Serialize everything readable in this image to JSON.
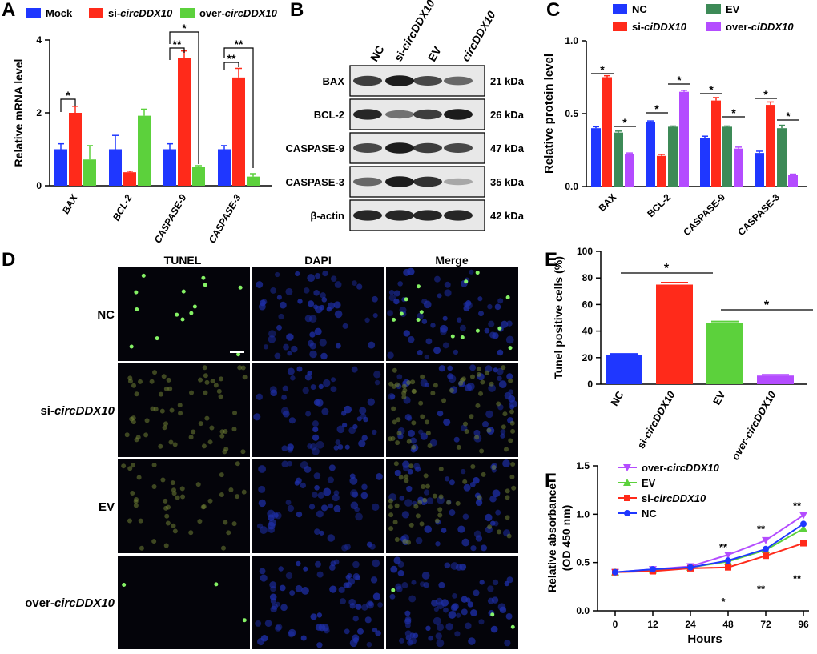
{
  "panels": {
    "A": {
      "letter": "A",
      "legend": [
        {
          "name_plain": "Mock",
          "name_prefix": "",
          "name_italic": "",
          "color": "#1f37ff"
        },
        {
          "name_plain": "",
          "name_prefix": "si-",
          "name_italic": "circDDX10",
          "color": "#ff2a1a"
        },
        {
          "name_plain": "",
          "name_prefix": "over-",
          "name_italic": "circDDX10",
          "color": "#5cd13c"
        }
      ],
      "ylabel": "Relative mRNA level",
      "yticks": [
        "0",
        "2",
        "4"
      ],
      "categories": [
        "BAX",
        "BCL-2",
        "CASPASE-9",
        "CASPASE-3"
      ],
      "sig": [
        "*",
        "**",
        "*",
        "**",
        "**"
      ]
    },
    "B": {
      "letter": "B",
      "lanes": [
        {
          "prefix": "",
          "italic": "",
          "plain": "NC"
        },
        {
          "prefix": "si-",
          "italic": "circDDX10",
          "plain": ""
        },
        {
          "prefix": "",
          "italic": "",
          "plain": "EV"
        },
        {
          "prefix": "",
          "italic": "circDDX10",
          "plain": ""
        }
      ],
      "rows": [
        {
          "protein": "BAX",
          "size": "21 kDa"
        },
        {
          "protein": "BCL-2",
          "size": "26 kDa"
        },
        {
          "protein": "CASPASE-9",
          "size": "47 kDa"
        },
        {
          "protein": "CASPASE-3",
          "size": "35 kDa"
        },
        {
          "protein": "β-actin",
          "size": "42 kDa"
        }
      ]
    },
    "C": {
      "letter": "C",
      "legend": [
        {
          "prefix": "NC",
          "italic": "",
          "color": "#1f37ff"
        },
        {
          "prefix": "EV",
          "italic": "",
          "color": "#3d8a57"
        },
        {
          "prefix": "si-",
          "italic": "ciDDX10",
          "color": "#ff2a1a"
        },
        {
          "prefix": "over-",
          "italic": "ciDDX10",
          "color": "#b44cff"
        }
      ],
      "ylabel": "Relative protein level",
      "yticks": [
        "0.0",
        "0.5",
        "1.0"
      ],
      "categories": [
        "BAX",
        "BCL-2",
        "CASPASE-9",
        "CASPASE-3"
      ],
      "sig": "*"
    },
    "D": {
      "letter": "D",
      "columns": [
        "TUNEL",
        "DAPI",
        "Merge"
      ],
      "rows": [
        {
          "prefix": "NC",
          "italic": ""
        },
        {
          "prefix": "si-",
          "italic": "circDDX10"
        },
        {
          "prefix": "EV",
          "italic": ""
        },
        {
          "prefix": "over-",
          "italic": "circDDX10"
        }
      ]
    },
    "E": {
      "letter": "E",
      "ylabel": "Tunel positive cells (%)",
      "yticks": [
        "0",
        "20",
        "40",
        "60",
        "80",
        "100"
      ],
      "categories": [
        {
          "prefix": "NC",
          "italic": ""
        },
        {
          "prefix": "si-",
          "italic": "circDDX10"
        },
        {
          "prefix": "EV",
          "italic": ""
        },
        {
          "prefix": "",
          "italic": "over-circDDX10"
        }
      ],
      "sig": "*"
    },
    "F": {
      "letter": "F",
      "ylabel_line1": "Relative absorbance",
      "ylabel_line2": "(OD 450 nm)",
      "xlabel": "Hours",
      "yticks": [
        "0.0",
        "0.5",
        "1.0",
        "1.5"
      ],
      "xticks": [
        "0",
        "12",
        "24",
        "48",
        "72",
        "96"
      ],
      "legend": [
        {
          "prefix": "over-",
          "italic": "circDDX10",
          "color": "#b44cff"
        },
        {
          "prefix": "EV",
          "italic": "",
          "color": "#5cd13c"
        },
        {
          "prefix": "si-",
          "italic": "circDDX10",
          "color": "#ff2a1a"
        },
        {
          "prefix": "NC",
          "italic": "",
          "color": "#1f37ff"
        }
      ],
      "marks_upper": [
        "**",
        "**",
        "**"
      ],
      "marks_lower": [
        "*",
        "**",
        "**"
      ]
    }
  },
  "chart_data": [
    {
      "panel": "A",
      "type": "bar",
      "categories": [
        "BAX",
        "BCL-2",
        "CASPASE-9",
        "CASPASE-3"
      ],
      "ylabel": "Relative mRNA level",
      "ylim": [
        0,
        4
      ],
      "series": [
        {
          "name": "Mock",
          "values": [
            1.0,
            1.0,
            1.0,
            1.0
          ],
          "errors": [
            0.15,
            0.38,
            0.15,
            0.1
          ],
          "color": "#1f37ff"
        },
        {
          "name": "si-circDDX10",
          "values": [
            2.0,
            0.37,
            3.5,
            2.97
          ],
          "errors": [
            0.18,
            0.03,
            0.2,
            0.25
          ],
          "color": "#ff2a1a"
        },
        {
          "name": "over-circDDX10",
          "values": [
            0.72,
            1.92,
            0.52,
            0.25
          ],
          "errors": [
            0.38,
            0.18,
            0.03,
            0.08
          ],
          "color": "#5cd13c"
        }
      ]
    },
    {
      "panel": "C",
      "type": "bar",
      "categories": [
        "BAX",
        "BCL-2",
        "CASPASE-9",
        "CASPASE-3"
      ],
      "ylabel": "Relative protein level",
      "ylim": [
        0,
        1.0
      ],
      "series": [
        {
          "name": "NC",
          "values": [
            0.4,
            0.44,
            0.33,
            0.23
          ],
          "errors": [
            0.01,
            0.01,
            0.015,
            0.012
          ],
          "color": "#1f37ff"
        },
        {
          "name": "si-ciDDX10",
          "values": [
            0.75,
            0.21,
            0.59,
            0.56
          ],
          "errors": [
            0.01,
            0.01,
            0.02,
            0.02
          ],
          "color": "#ff2a1a"
        },
        {
          "name": "EV",
          "values": [
            0.37,
            0.41,
            0.41,
            0.4
          ],
          "errors": [
            0.01,
            0.005,
            0.005,
            0.02
          ],
          "color": "#3d8a57"
        },
        {
          "name": "over-ciDDX10",
          "values": [
            0.22,
            0.65,
            0.26,
            0.08
          ],
          "errors": [
            0.01,
            0.01,
            0.01,
            0.005
          ],
          "color": "#b44cff"
        }
      ]
    },
    {
      "panel": "E",
      "type": "bar",
      "categories": [
        "NC",
        "si-circDDX10",
        "EV",
        "over-circDDX10"
      ],
      "ylabel": "Tunel positive cells (%)",
      "ylim": [
        0,
        100
      ],
      "values": [
        22,
        75,
        46,
        6.5
      ],
      "errors": [
        0.8,
        1.5,
        1.2,
        0.6
      ],
      "colors": [
        "#1f37ff",
        "#ff2a1a",
        "#5cd13c",
        "#b44cff"
      ]
    },
    {
      "panel": "F",
      "type": "line",
      "x": [
        0,
        12,
        24,
        48,
        72,
        96
      ],
      "xlabel": "Hours",
      "ylabel": "Relative absorbance (OD 450 nm)",
      "xlim": [
        0,
        96
      ],
      "ylim": [
        0,
        1.5
      ],
      "series": [
        {
          "name": "over-circDDX10",
          "values": [
            0.4,
            0.43,
            0.46,
            0.58,
            0.73,
            0.99
          ],
          "color": "#b44cff"
        },
        {
          "name": "EV",
          "values": [
            0.4,
            0.42,
            0.45,
            0.51,
            0.63,
            0.85
          ],
          "color": "#5cd13c"
        },
        {
          "name": "si-circDDX10",
          "values": [
            0.4,
            0.41,
            0.44,
            0.45,
            0.57,
            0.7
          ],
          "color": "#ff2a1a"
        },
        {
          "name": "NC",
          "values": [
            0.4,
            0.43,
            0.45,
            0.52,
            0.64,
            0.9
          ],
          "color": "#1f37ff"
        }
      ]
    }
  ]
}
